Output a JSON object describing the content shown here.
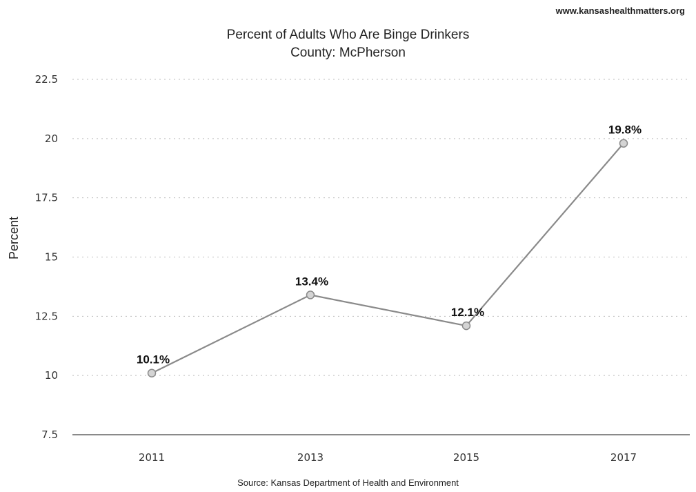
{
  "header": {
    "site_url": "www.kansashealthmatters.org"
  },
  "chart_data": {
    "type": "line",
    "title": "Percent of Adults Who Are Binge Drinkers",
    "subtitle": "County: McPherson",
    "xlabel": "",
    "ylabel": "Percent",
    "categories": [
      "2011",
      "2013",
      "2015",
      "2017"
    ],
    "series": [
      {
        "values": [
          10.1,
          13.4,
          12.1,
          19.8
        ],
        "labels": [
          "10.1%",
          "13.4%",
          "12.1%",
          "19.8%"
        ],
        "color": "#8a8a8a"
      }
    ],
    "ylim": [
      7.5,
      22.5
    ],
    "yticks": [
      "22.5",
      "20",
      "17.5",
      "15",
      "12.5",
      "10",
      "7.5"
    ],
    "grid": true,
    "legend": "none"
  },
  "footer": {
    "source": "Source: Kansas Department of Health and Environment"
  }
}
